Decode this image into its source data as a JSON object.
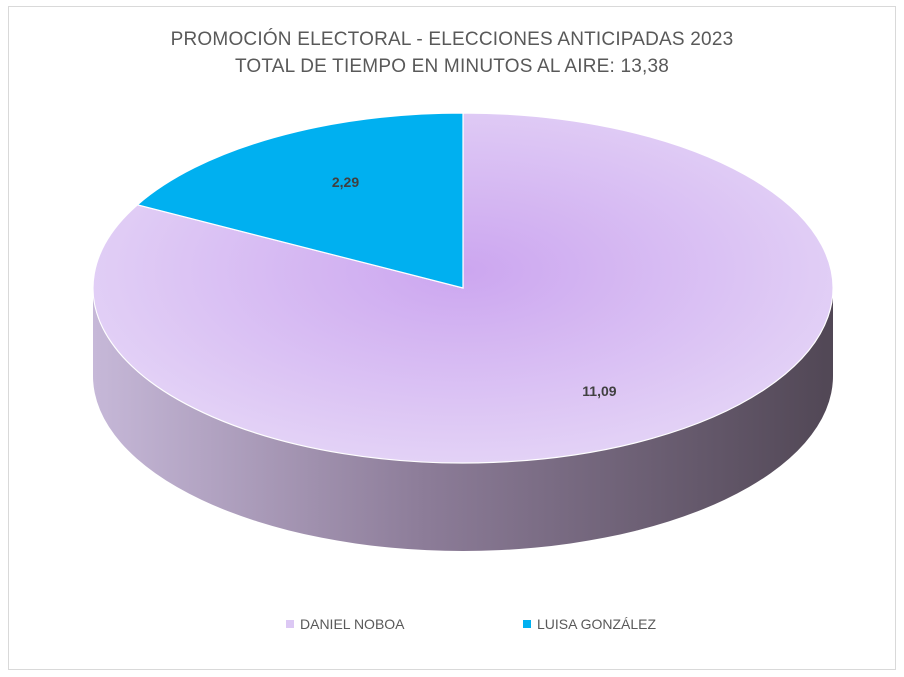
{
  "chart_data": {
    "type": "pie",
    "title": "PROMOCIÓN ELECTORAL - ELECCIONES ANTICIPADAS 2023",
    "subtitle": "TOTAL DE TIEMPO EN MINUTOS AL AIRE: 13,38",
    "slices": [
      {
        "name": "DANIEL NOBOA",
        "value": 11.09,
        "label": "11,09",
        "color": "#dcc8f4"
      },
      {
        "name": "LUISA GONZÁLEZ",
        "value": 2.29,
        "label": "2,29",
        "color": "#00b0f0"
      }
    ],
    "legend_position": "bottom",
    "style": "3d"
  }
}
